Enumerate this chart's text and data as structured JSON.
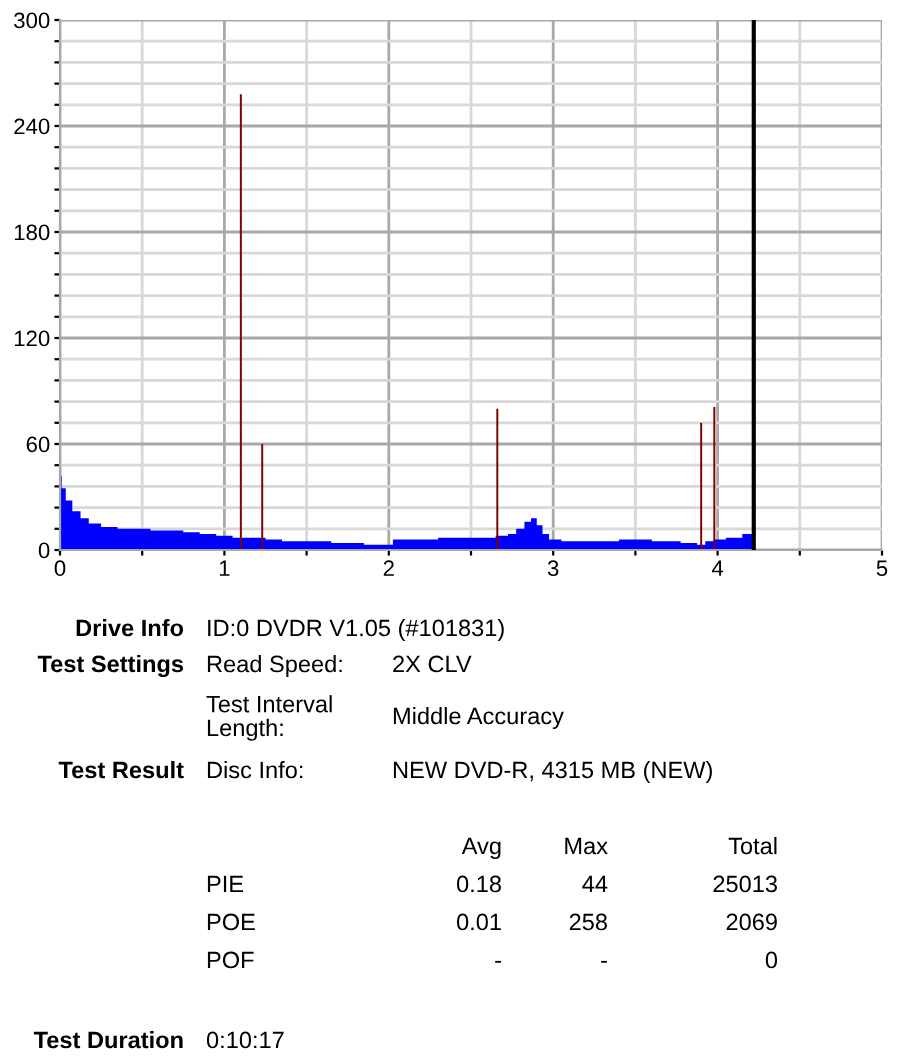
{
  "chart_data": {
    "type": "bar",
    "series": [
      {
        "type": "area",
        "color": "#0000ff",
        "x": [
          0,
          0.02,
          0.05,
          0.1,
          0.15,
          0.2,
          0.3,
          0.4,
          0.5,
          0.6,
          0.7,
          0.8,
          0.9,
          1.0,
          1.1,
          1.2,
          1.3,
          1.4,
          1.5,
          1.6,
          1.7,
          1.8,
          1.9,
          2.0,
          2.05,
          2.2,
          2.4,
          2.6,
          2.7,
          2.75,
          2.8,
          2.85,
          2.88,
          2.92,
          2.95,
          3.0,
          3.1,
          3.3,
          3.5,
          3.7,
          3.85,
          3.9,
          3.95,
          4.0,
          4.1,
          4.2,
          4.22
        ],
        "values": [
          42,
          35,
          28,
          22,
          18,
          15,
          13,
          12,
          12,
          11,
          11,
          10,
          9,
          8,
          7,
          7,
          6,
          5,
          5,
          5,
          4,
          4,
          3,
          3,
          6,
          6,
          7,
          7,
          8,
          9,
          12,
          16,
          18,
          14,
          9,
          6,
          5,
          5,
          6,
          5,
          4,
          3,
          5,
          6,
          7,
          9,
          13
        ]
      },
      {
        "color": "#800000",
        "x": [
          1.1,
          1.23,
          2.66,
          3.9,
          3.98
        ],
        "values": [
          258,
          60,
          80,
          72,
          81
        ]
      }
    ],
    "xlim": [
      0,
      5
    ],
    "ylim": [
      0,
      300
    ],
    "xticks": [
      0,
      {
        "value": 0.5,
        "label": null
      },
      1,
      {
        "value": 1.5,
        "label": null
      },
      2,
      {
        "value": 2.5,
        "label": null
      },
      3,
      {
        "value": 3.5,
        "label": null
      },
      4,
      {
        "value": 4.5,
        "label": null
      },
      5
    ],
    "yticks": [
      0,
      {
        "value": 12,
        "label": null
      },
      {
        "value": 24,
        "label": null
      },
      {
        "value": 36,
        "label": null
      },
      {
        "value": 48,
        "label": null
      },
      60,
      {
        "value": 72,
        "label": null
      },
      {
        "value": 84,
        "label": null
      },
      {
        "value": 96,
        "label": null
      },
      {
        "value": 108,
        "label": null
      },
      120,
      {
        "value": 132,
        "label": null
      },
      {
        "value": 144,
        "label": null
      },
      {
        "value": 156,
        "label": null
      },
      {
        "value": 168,
        "label": null
      },
      180,
      {
        "value": 192,
        "label": null
      },
      {
        "value": 204,
        "label": null
      },
      {
        "value": 216,
        "label": null
      },
      {
        "value": 228,
        "label": null
      },
      240,
      {
        "value": 252,
        "label": null
      },
      {
        "value": 264,
        "label": null
      },
      {
        "value": 276,
        "label": null
      },
      {
        "value": 288,
        "label": null
      },
      300
    ],
    "grid": true,
    "ref_lines": [
      {
        "axis": "x",
        "value": 4.22,
        "color": "#000000"
      }
    ],
    "annotations": [
      "Drive Info",
      "ID:0 DVDR V1.05 (#101831)",
      "Test Settings",
      "Read Speed:",
      "2X CLV",
      "Test Interval\nLength:",
      "Middle Accuracy",
      "Test Result",
      "Disc Info:",
      "NEW DVD-R, 4315 MB (NEW)",
      "Avg",
      "Max",
      "Total",
      "PIE",
      "0.18",
      "44",
      "25013",
      "POE",
      "0.01",
      "258",
      "2069",
      "POF",
      "-",
      "-",
      "0",
      "Test Duration",
      "0:10:17"
    ]
  }
}
